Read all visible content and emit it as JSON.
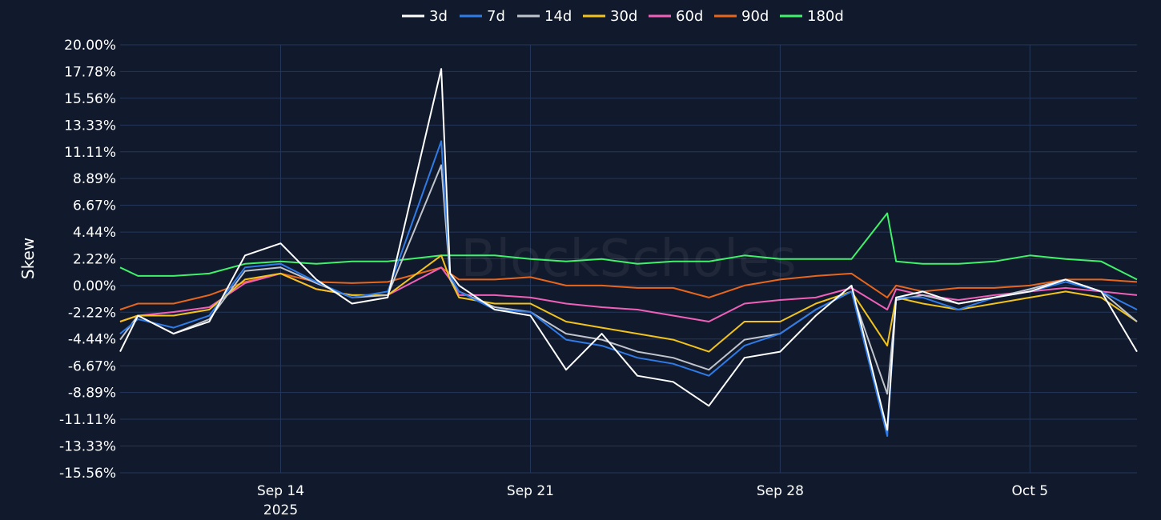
{
  "chart_data": {
    "type": "line",
    "ylabel": "Skew",
    "watermark": "BlockScholes",
    "yticks": [
      "20.00%",
      "17.78%",
      "15.56%",
      "13.33%",
      "11.11%",
      "8.89%",
      "6.67%",
      "4.44%",
      "2.22%",
      "0.00%",
      "-2.22%",
      "-4.44%",
      "-6.67%",
      "-8.89%",
      "-11.11%",
      "-13.33%",
      "-15.56%"
    ],
    "ylim": [
      -15.56,
      20.0
    ],
    "xlim": [
      "2025-09-09T12:00",
      "2025-10-08T00:00"
    ],
    "xticks": [
      {
        "date": "2025-09-14",
        "label": "Sep 14",
        "sublabel": "2025"
      },
      {
        "date": "2025-09-21",
        "label": "Sep 21",
        "sublabel": ""
      },
      {
        "date": "2025-09-28",
        "label": "Sep 28",
        "sublabel": ""
      },
      {
        "date": "2025-10-05",
        "label": "Oct 5",
        "sublabel": ""
      }
    ],
    "grid": true,
    "legend_position": "top",
    "x": [
      "2025-09-09T12:00",
      "2025-09-10T00:00",
      "2025-09-11T00:00",
      "2025-09-12T00:00",
      "2025-09-13T00:00",
      "2025-09-14T00:00",
      "2025-09-15T00:00",
      "2025-09-16T00:00",
      "2025-09-17T00:00",
      "2025-09-18T12:00",
      "2025-09-18T18:00",
      "2025-09-19T00:00",
      "2025-09-20T00:00",
      "2025-09-21T00:00",
      "2025-09-22T00:00",
      "2025-09-23T00:00",
      "2025-09-24T00:00",
      "2025-09-25T00:00",
      "2025-09-26T00:00",
      "2025-09-27T00:00",
      "2025-09-28T00:00",
      "2025-09-29T00:00",
      "2025-09-30T00:00",
      "2025-10-01T00:00",
      "2025-10-01T06:00",
      "2025-10-02T00:00",
      "2025-10-03T00:00",
      "2025-10-04T00:00",
      "2025-10-05T00:00",
      "2025-10-06T00:00",
      "2025-10-07T00:00",
      "2025-10-08T00:00"
    ],
    "series": [
      {
        "name": "3d",
        "color": "#ffffff",
        "values": [
          -5.5,
          -2.5,
          -4.0,
          -3.0,
          2.5,
          3.5,
          0.5,
          -1.5,
          -1.0,
          18.0,
          1.0,
          0.0,
          -2.0,
          -2.5,
          -7.0,
          -4.0,
          -7.5,
          -8.0,
          -10.0,
          -6.0,
          -5.5,
          -2.5,
          0.0,
          -12.0,
          -1.0,
          -0.5,
          -1.5,
          -1.0,
          -0.5,
          0.5,
          -0.5,
          -5.5
        ]
      },
      {
        "name": "7d",
        "color": "#2f7be8",
        "values": [
          -4.0,
          -2.8,
          -3.5,
          -2.5,
          1.5,
          1.8,
          0.3,
          -1.0,
          -0.5,
          12.0,
          0.8,
          -0.5,
          -2.0,
          -2.2,
          -4.5,
          -5.0,
          -6.0,
          -6.5,
          -7.5,
          -5.0,
          -4.0,
          -2.0,
          -0.5,
          -12.5,
          -1.0,
          -1.0,
          -2.0,
          -1.0,
          -0.5,
          0.3,
          -0.5,
          -2.0
        ]
      },
      {
        "name": "14d",
        "color": "#c0c4cc",
        "values": [
          -4.5,
          -2.5,
          -4.0,
          -2.8,
          1.2,
          1.5,
          0.2,
          -1.0,
          -0.8,
          10.0,
          0.5,
          -0.5,
          -1.8,
          -2.2,
          -4.0,
          -4.5,
          -5.5,
          -6.0,
          -7.0,
          -4.5,
          -4.0,
          -2.0,
          -0.5,
          -9.0,
          -1.2,
          -0.8,
          -1.5,
          -1.0,
          -0.3,
          0.5,
          -0.5,
          -3.0
        ]
      },
      {
        "name": "30d",
        "color": "#f2c31a",
        "values": [
          -3.0,
          -2.5,
          -2.5,
          -2.0,
          0.5,
          1.0,
          -0.3,
          -0.8,
          -0.8,
          2.5,
          0.5,
          -1.0,
          -1.5,
          -1.5,
          -3.0,
          -3.5,
          -4.0,
          -4.5,
          -5.5,
          -3.0,
          -3.0,
          -1.5,
          -0.5,
          -5.0,
          -1.0,
          -1.5,
          -2.0,
          -1.5,
          -1.0,
          -0.5,
          -1.0,
          -3.0
        ]
      },
      {
        "name": "60d",
        "color": "#f060b8",
        "values": [
          -3.0,
          -2.5,
          -2.2,
          -1.8,
          0.2,
          1.0,
          -0.3,
          -0.8,
          -0.8,
          1.5,
          0.5,
          -0.8,
          -0.8,
          -1.0,
          -1.5,
          -1.8,
          -2.0,
          -2.5,
          -3.0,
          -1.5,
          -1.2,
          -1.0,
          -0.2,
          -2.0,
          -0.3,
          -0.8,
          -1.2,
          -0.8,
          -0.5,
          -0.2,
          -0.5,
          -0.8
        ]
      },
      {
        "name": "90d",
        "color": "#e8661c",
        "values": [
          -2.0,
          -1.5,
          -1.5,
          -0.8,
          0.3,
          1.0,
          0.3,
          0.2,
          0.3,
          1.5,
          1.0,
          0.5,
          0.5,
          0.7,
          0.0,
          0.0,
          -0.2,
          -0.2,
          -1.0,
          0.0,
          0.5,
          0.8,
          1.0,
          -1.0,
          0.0,
          -0.5,
          -0.2,
          -0.2,
          0.0,
          0.5,
          0.5,
          0.3
        ]
      },
      {
        "name": "180d",
        "color": "#3ff26a",
        "values": [
          1.5,
          0.8,
          0.8,
          1.0,
          1.8,
          2.0,
          1.8,
          2.0,
          2.0,
          2.5,
          2.5,
          2.5,
          2.5,
          2.2,
          2.0,
          2.2,
          1.8,
          2.0,
          2.0,
          2.5,
          2.2,
          2.2,
          2.2,
          6.0,
          2.0,
          1.8,
          1.8,
          2.0,
          2.5,
          2.2,
          2.0,
          0.5
        ]
      }
    ]
  }
}
